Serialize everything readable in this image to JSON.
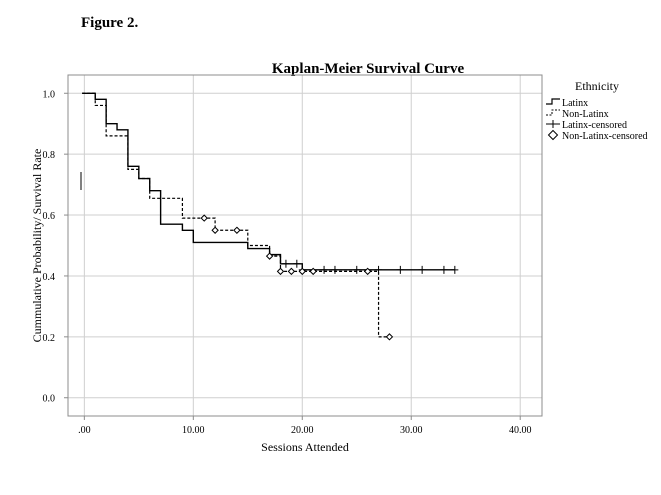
{
  "figure": {
    "label": "Figure 2."
  },
  "chart_data": {
    "type": "line",
    "title": "Kaplan-Meier Survival Curve",
    "xlabel": "Sessions Attended",
    "ylabel": "Cummulative Probability/ Survival Rate",
    "xlim": [
      -1.5,
      42
    ],
    "ylim": [
      -0.06,
      1.06
    ],
    "x_ticks": [
      0,
      10,
      20,
      30,
      40
    ],
    "x_tick_labels": [
      ".00",
      "10.00",
      "20.00",
      "30.00",
      "40.00"
    ],
    "y_ticks": [
      0,
      0.2,
      0.4,
      0.6,
      0.8,
      1.0
    ],
    "y_tick_labels": [
      "0.0",
      "0.2",
      "0.4",
      "0.6",
      "0.8",
      "1.0"
    ],
    "grid": true,
    "legend": {
      "title": "Ethnicity",
      "position": "top-right outside",
      "entries": [
        "Latinx",
        "Non-Latinx",
        "Latinx-censored",
        "Non-Latinx-censored"
      ]
    },
    "series": [
      {
        "name": "Latinx",
        "style": "solid",
        "steps": [
          [
            -0.2,
            1.0
          ],
          [
            1,
            0.98
          ],
          [
            2,
            0.9
          ],
          [
            3,
            0.88
          ],
          [
            4,
            0.76
          ],
          [
            5,
            0.72
          ],
          [
            6,
            0.68
          ],
          [
            7,
            0.57
          ],
          [
            9,
            0.55
          ],
          [
            10,
            0.51
          ],
          [
            15,
            0.49
          ],
          [
            17,
            0.47
          ],
          [
            18,
            0.44
          ],
          [
            20,
            0.42
          ],
          [
            34,
            0.42
          ]
        ],
        "censored": [
          18.5,
          19.5,
          20,
          22,
          23,
          25,
          27,
          29,
          31,
          33,
          34
        ]
      },
      {
        "name": "Non-Latinx",
        "style": "dashed",
        "steps": [
          [
            -0.2,
            1.0
          ],
          [
            1,
            0.96
          ],
          [
            2,
            0.86
          ],
          [
            4,
            0.75
          ],
          [
            5,
            0.72
          ],
          [
            6,
            0.655
          ],
          [
            9,
            0.59
          ],
          [
            12,
            0.55
          ],
          [
            15,
            0.5
          ],
          [
            17,
            0.465
          ],
          [
            18,
            0.415
          ],
          [
            27,
            0.2
          ],
          [
            28,
            0.2
          ]
        ],
        "censored": [
          11,
          12,
          14,
          17,
          18,
          19,
          20,
          21,
          26,
          28
        ]
      }
    ]
  }
}
